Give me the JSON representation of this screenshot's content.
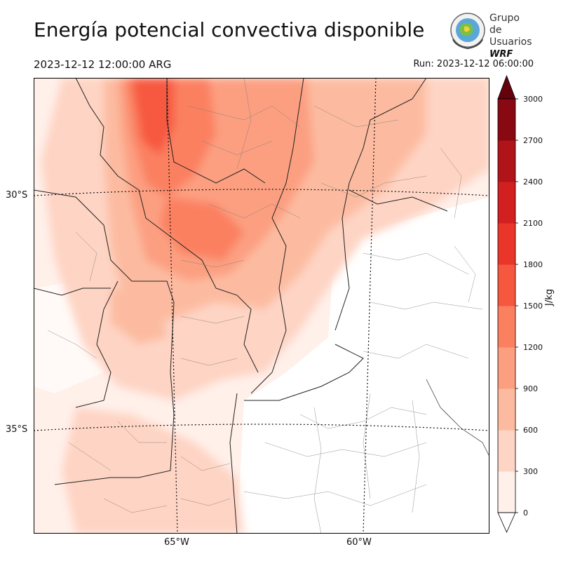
{
  "header": {
    "title": "Energía potencial convectiva disponible",
    "valid_time": "2023-12-12 12:00:00 ARG",
    "run_time": "Run: 2023-12-12 06:00:00"
  },
  "logo": {
    "line1": "Grupo de",
    "line2": "Usuarios",
    "line3": "WRF"
  },
  "map": {
    "lat_labels": [
      "30°S",
      "35°S"
    ],
    "lon_labels": [
      "65°W",
      "60°W"
    ]
  },
  "colorbar": {
    "unit": "J/kg",
    "ticks": [
      "0",
      "300",
      "600",
      "900",
      "1200",
      "1500",
      "1800",
      "2100",
      "2400",
      "2700",
      "3000"
    ],
    "colors": [
      "#fff0ea",
      "#fed4c4",
      "#fcbba0",
      "#fc9f81",
      "#fb8060",
      "#f6583f",
      "#ea362a",
      "#d21f20",
      "#b01419",
      "#880912",
      "#67000d"
    ]
  },
  "colors": {
    "border": "#222222",
    "dept_lines": "#777777"
  }
}
